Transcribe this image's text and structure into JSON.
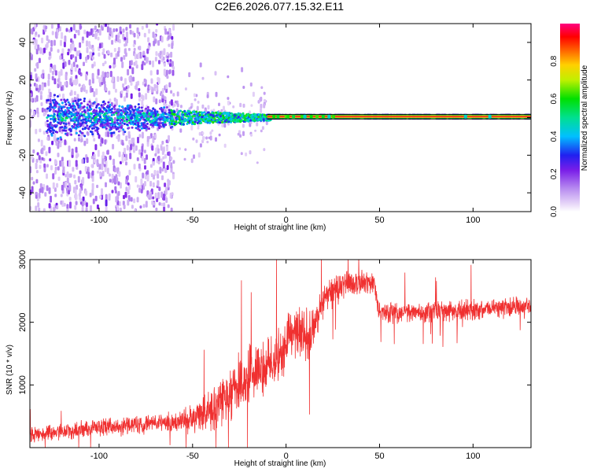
{
  "title": "C2E6.2026.077.15.32.E11",
  "colors": {
    "background": "#ffffff",
    "axis": "#000000",
    "snr_line": "#f03030",
    "carrier_line": "#000000"
  },
  "chart_data": [
    {
      "type": "heatmap",
      "name": "spectrogram",
      "xlabel": "Height of straight line (km)",
      "ylabel": "Frequency (Hz)",
      "xlim": [
        -137,
        131
      ],
      "ylim": [
        -50,
        50
      ],
      "xticks": [
        -100,
        -50,
        0,
        50,
        100
      ],
      "yticks": [
        -40,
        -20,
        0,
        20,
        40
      ],
      "xtick_labels": [
        "-100",
        "-50",
        "0",
        "50",
        "100"
      ],
      "ytick_labels": [
        "-40",
        "-20",
        "0",
        "20",
        "40"
      ],
      "carrier_frequency": 0.5,
      "regions": [
        {
          "x_range": [
            -137,
            -62
          ],
          "freq_spread": 50,
          "density": "scattered noise, amplitude 0.15-0.3"
        },
        {
          "x_range": [
            -125,
            -60
          ],
          "freq_spread": 8,
          "density": "dense core, amplitude up to 0.45"
        },
        {
          "x_range": [
            -62,
            -10
          ],
          "freq_spread": 4,
          "density": "converging signal, amplitude 0.3-0.6"
        },
        {
          "x_range": [
            -10,
            131
          ],
          "freq_spread": 1,
          "density": "stable carrier, amplitude 0.85-1.0"
        }
      ],
      "colorbar": {
        "label": "Normalized spectral amplitude",
        "range": [
          0,
          1
        ],
        "ticks": [
          0.0,
          0.2,
          0.4,
          0.6,
          0.8
        ],
        "tick_labels": [
          "0.0",
          "0.2",
          "0.4",
          "0.6",
          "0.8"
        ]
      }
    },
    {
      "type": "line",
      "name": "snr",
      "xlabel": "Height of straight line (km)",
      "ylabel": "SNR (10 * v/v)",
      "xlim": [
        -137,
        131
      ],
      "ylim": [
        0,
        3000
      ],
      "xticks": [
        -100,
        -50,
        0,
        50,
        100
      ],
      "yticks": [
        1000,
        2000,
        3000
      ],
      "xtick_labels": [
        "-100",
        "-50",
        "0",
        "50",
        "100"
      ],
      "ytick_labels": [
        "1000",
        "2000",
        "3000"
      ],
      "series": [
        {
          "name": "SNR",
          "envelope_x": [
            -137,
            -120,
            -100,
            -80,
            -60,
            -50,
            -40,
            -30,
            -25,
            -20,
            -15,
            -10,
            -5,
            0,
            5,
            10,
            15,
            20,
            30,
            40,
            47,
            49,
            52,
            60,
            80,
            100,
            131
          ],
          "envelope_y": [
            210,
            250,
            320,
            360,
            410,
            460,
            590,
            820,
            1020,
            1150,
            1270,
            1300,
            1400,
            1650,
            1820,
            1820,
            1900,
            2350,
            2600,
            2650,
            2650,
            2250,
            2150,
            2150,
            2170,
            2200,
            2250
          ],
          "noise_amplitude_x": [
            -137,
            -60,
            -35,
            -20,
            -10,
            10,
            20,
            47,
            50,
            131
          ],
          "noise_amplitude_y": [
            150,
            200,
            420,
            600,
            500,
            500,
            300,
            220,
            200,
            200
          ]
        }
      ]
    }
  ]
}
